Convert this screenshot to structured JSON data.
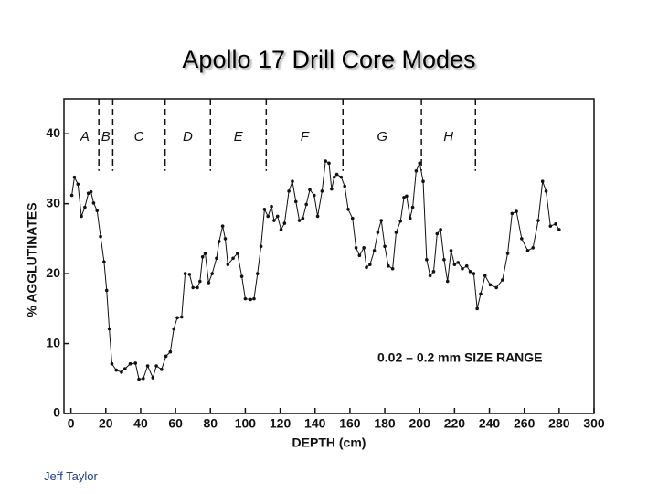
{
  "chart_data": {
    "type": "line",
    "title": "Apollo 17 Drill Core Modes",
    "xlabel": "DEPTH (cm)",
    "ylabel": "% AGGLUTINATES",
    "annotation": "0.02 – 0.2 mm SIZE RANGE",
    "footer": "Jeff Taylor",
    "xlim": [
      -4,
      300
    ],
    "ylim": [
      0,
      45
    ],
    "xticks": [
      0,
      20,
      40,
      60,
      80,
      100,
      120,
      140,
      160,
      180,
      200,
      220,
      240,
      260,
      280,
      300
    ],
    "yticks": [
      0,
      10,
      20,
      30,
      40
    ],
    "zones": [
      "A",
      "B",
      "C",
      "D",
      "E",
      "F",
      "G",
      "H"
    ],
    "boundaries": [
      16,
      24,
      54,
      80,
      112,
      156,
      201,
      232
    ],
    "series": [
      {
        "color": "#111111",
        "x": [
          0.5,
          2,
          4,
          6,
          8,
          10,
          11.5,
          13,
          15,
          17,
          19,
          20.5,
          22,
          23.5,
          26,
          29,
          31,
          34,
          37,
          39,
          41.5,
          44,
          47,
          49,
          52,
          54.5,
          57,
          59,
          61,
          63.5,
          65.5,
          68,
          70,
          72.5,
          74,
          75.5,
          77,
          79,
          81,
          83.5,
          85,
          87,
          88.5,
          90,
          93,
          95.5,
          98,
          100,
          103,
          105,
          107,
          109,
          111,
          113,
          115,
          116.5,
          118.5,
          120.5,
          122.5,
          125,
          127,
          129,
          131,
          133,
          135,
          137,
          139.5,
          141.5,
          144,
          146,
          148,
          149.5,
          151,
          152.5,
          155,
          157,
          159,
          161.5,
          163.5,
          165.5,
          168,
          169.5,
          171.5,
          174,
          176,
          178,
          180,
          182,
          184.5,
          186.5,
          189,
          191,
          192.5,
          194.5,
          196,
          198,
          200,
          202,
          204,
          206,
          208,
          210,
          212,
          214,
          216,
          218,
          220,
          222,
          224.5,
          227,
          229,
          231,
          233,
          235,
          237.5,
          240.5,
          244,
          247.5,
          250.5,
          253,
          255.5,
          258.5,
          262,
          265,
          268,
          270.5,
          272.5,
          275,
          278,
          280
        ],
        "values": [
          31.2,
          33.8,
          32.8,
          28.2,
          29.5,
          31.5,
          31.7,
          30.1,
          29,
          25.3,
          21.7,
          17.6,
          12.1,
          7.1,
          6.2,
          5.9,
          6.4,
          7.1,
          7.2,
          4.9,
          5,
          6.8,
          5.1,
          6.8,
          6.3,
          8.2,
          8.8,
          12.1,
          13.7,
          13.8,
          20,
          19.9,
          18,
          18,
          18.9,
          22.4,
          22.9,
          18.7,
          20,
          22.2,
          24.6,
          26.8,
          25,
          21.3,
          22.2,
          22.9,
          19.6,
          16.4,
          16.3,
          16.4,
          20,
          23.9,
          29.2,
          28.2,
          29.6,
          27.6,
          28.2,
          26.3,
          27.2,
          31.8,
          33.2,
          30.3,
          27.6,
          27.9,
          29.9,
          32,
          31.2,
          28.2,
          31.8,
          36.1,
          35.8,
          32.1,
          33.8,
          34.2,
          33.8,
          32.5,
          29.2,
          27.9,
          23.7,
          22.6,
          23.7,
          20.9,
          21.3,
          23.3,
          25.9,
          27.6,
          23.9,
          21.1,
          20.7,
          25.9,
          27.5,
          30.9,
          31.1,
          27.9,
          29.5,
          34.7,
          35.8,
          33.2,
          22,
          19.7,
          20.3,
          25.7,
          26.3,
          22,
          18.9,
          23.3,
          21.3,
          21.6,
          20.7,
          21.1,
          20.3,
          20,
          15,
          17.1,
          19.7,
          18.4,
          18,
          19.1,
          22.9,
          28.6,
          28.9,
          25,
          23.3,
          23.7,
          27.6,
          33.2,
          31.8,
          26.8,
          27.1,
          26.3
        ]
      }
    ]
  }
}
